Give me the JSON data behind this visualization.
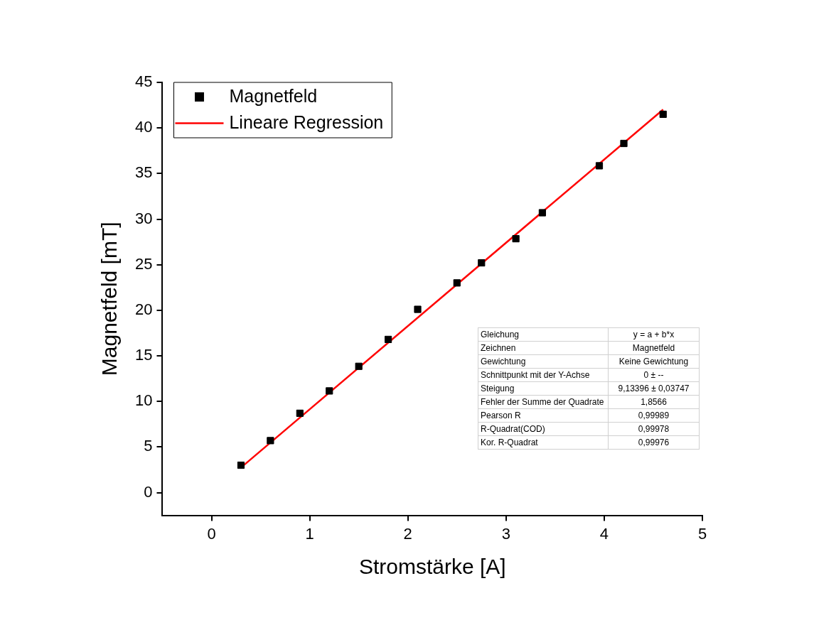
{
  "chart_data": {
    "type": "scatter",
    "xlabel": "Stromstärke [A]",
    "ylabel": "Magnetfeld [mT]",
    "xlim": [
      -0.5,
      5
    ],
    "xticks": [
      0,
      1,
      2,
      3,
      4,
      5
    ],
    "ylim": [
      -2.5,
      45
    ],
    "yticks": [
      0,
      5,
      10,
      15,
      20,
      25,
      30,
      35,
      40,
      45
    ],
    "grid": false,
    "legend": "top left",
    "series": [
      {
        "name": "Magnetfeld",
        "marker": "square",
        "color": "#000000",
        "x": [
          0.3,
          0.6,
          0.9,
          1.2,
          1.5,
          1.8,
          2.1,
          2.5,
          2.75,
          3.1,
          3.37,
          3.95,
          4.2,
          4.6
        ],
        "values": [
          3.0,
          5.7,
          8.7,
          11.15,
          13.85,
          16.8,
          20.1,
          23.0,
          25.2,
          27.85,
          30.7,
          35.85,
          38.3,
          41.5
        ]
      },
      {
        "name": "Lineare Regression",
        "type": "line",
        "marker": "none",
        "color": "#ff0000",
        "x": [
          0.3,
          4.6
        ],
        "values": [
          2.74,
          42.02
        ]
      }
    ],
    "annotations": [
      "Gleichung",
      "y = a + b*x",
      "Zeichnen",
      "Magnetfeld",
      "Gewichtung",
      "Keine Gewichtung",
      "Schnittpunkt mit der Y-Achse",
      "0 ± --",
      "Steigung",
      "9,13396 ± 0,03747",
      "Fehler der Summe der Quadrate",
      "1,8566",
      "Pearson R",
      "0,99989",
      "R-Quadrat(COD)",
      "0,99978",
      "Kor. R-Quadrat",
      "0,99976"
    ]
  }
}
